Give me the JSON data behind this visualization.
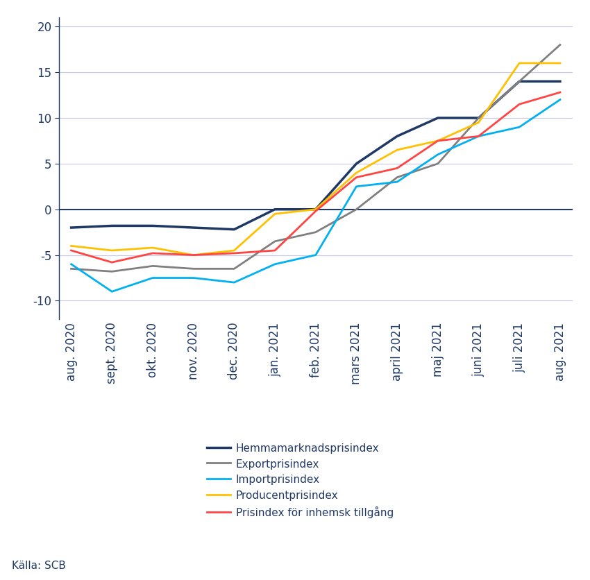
{
  "x_labels": [
    "aug. 2020",
    "sept. 2020",
    "okt. 2020",
    "nov. 2020",
    "dec. 2020",
    "jan. 2021",
    "feb. 2021",
    "mars 2021",
    "april 2021",
    "maj 2021",
    "juni 2021",
    "juli 2021",
    "aug. 2021"
  ],
  "series": {
    "Hemmamarknadsprisindex": {
      "color": "#1F3864",
      "values": [
        -2.0,
        -1.8,
        -1.8,
        -2.0,
        -2.2,
        0.0,
        0.0,
        5.0,
        8.0,
        10.0,
        10.0,
        14.0,
        14.0
      ],
      "linewidth": 2.5
    },
    "Exportprisindex": {
      "color": "#808080",
      "values": [
        -6.5,
        -6.8,
        -6.2,
        -6.5,
        -6.5,
        -3.5,
        -2.5,
        0.0,
        3.5,
        5.0,
        10.0,
        14.0,
        18.0
      ],
      "linewidth": 2.0
    },
    "Importprisindex": {
      "color": "#00B0F0",
      "values": [
        -6.0,
        -9.0,
        -7.5,
        -7.5,
        -8.0,
        -6.0,
        -5.0,
        2.5,
        3.0,
        6.0,
        8.0,
        9.0,
        12.0
      ],
      "linewidth": 2.0
    },
    "Producentprisindex": {
      "color": "#FFC000",
      "values": [
        -4.0,
        -4.5,
        -4.2,
        -5.0,
        -4.5,
        -0.5,
        0.0,
        4.0,
        6.5,
        7.5,
        9.5,
        16.0,
        16.0
      ],
      "linewidth": 2.0
    },
    "Prisindex för inhemsk tillgång": {
      "color": "#FF4444",
      "values": [
        -4.5,
        -5.8,
        -4.8,
        -5.0,
        -4.8,
        -4.5,
        -0.2,
        3.5,
        4.5,
        7.5,
        8.0,
        11.5,
        12.8
      ],
      "linewidth": 2.0
    }
  },
  "ylim": [
    -12,
    21
  ],
  "yticks": [
    -10,
    -5,
    0,
    5,
    10,
    15,
    20
  ],
  "grid_color": "#C8C8E8",
  "background_color": "#FFFFFF",
  "spine_color": "#1F3864",
  "zero_line_color": "#1F3864",
  "tick_label_color": "#1F3864",
  "source_text": "Källa: SCB",
  "legend_order": [
    "Hemmamarknadsprisindex",
    "Exportprisindex",
    "Importprisindex",
    "Producentprisindex",
    "Prisindex för inhemsk tillgång"
  ],
  "legend_fontsize": 11,
  "tick_fontsize": 12,
  "figsize": [
    8.5,
    8.36
  ],
  "dpi": 100
}
